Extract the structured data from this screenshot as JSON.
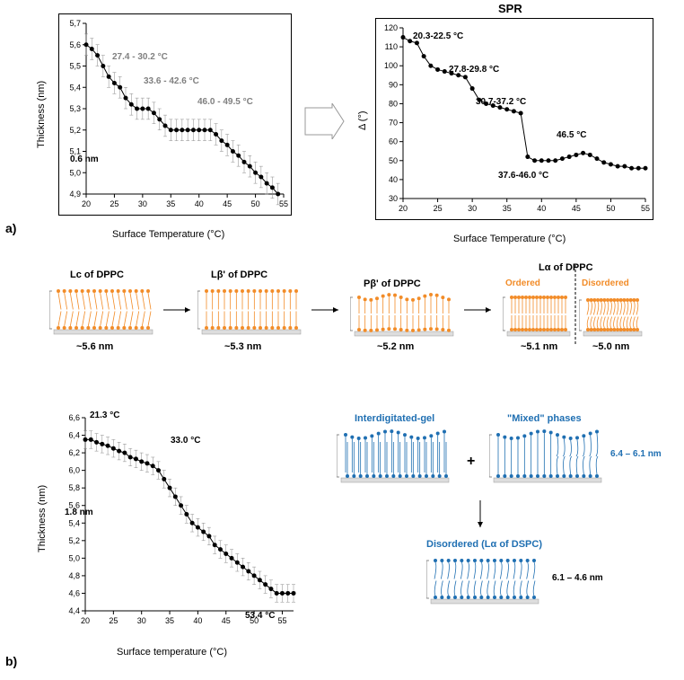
{
  "panel_a": {
    "label": "a)",
    "chart1": {
      "type": "scatter-line",
      "xlabel": "Surface Temperature (°C)",
      "ylabel": "Thickness (nm)",
      "xlim": [
        20,
        55
      ],
      "xtick_step": 5,
      "ylim": [
        4.9,
        5.7
      ],
      "ytick_step": 0.1,
      "ytick_format": "comma",
      "points": [
        {
          "x": 20,
          "y": 5.6
        },
        {
          "x": 21,
          "y": 5.58
        },
        {
          "x": 22,
          "y": 5.55
        },
        {
          "x": 23,
          "y": 5.5
        },
        {
          "x": 24,
          "y": 5.45
        },
        {
          "x": 25,
          "y": 5.42
        },
        {
          "x": 26,
          "y": 5.4
        },
        {
          "x": 27,
          "y": 5.35
        },
        {
          "x": 28,
          "y": 5.32
        },
        {
          "x": 29,
          "y": 5.3
        },
        {
          "x": 30,
          "y": 5.3
        },
        {
          "x": 31,
          "y": 5.3
        },
        {
          "x": 32,
          "y": 5.28
        },
        {
          "x": 33,
          "y": 5.25
        },
        {
          "x": 34,
          "y": 5.22
        },
        {
          "x": 35,
          "y": 5.2
        },
        {
          "x": 36,
          "y": 5.2
        },
        {
          "x": 37,
          "y": 5.2
        },
        {
          "x": 38,
          "y": 5.2
        },
        {
          "x": 39,
          "y": 5.2
        },
        {
          "x": 40,
          "y": 5.2
        },
        {
          "x": 41,
          "y": 5.2
        },
        {
          "x": 42,
          "y": 5.2
        },
        {
          "x": 43,
          "y": 5.18
        },
        {
          "x": 44,
          "y": 5.15
        },
        {
          "x": 45,
          "y": 5.13
        },
        {
          "x": 46,
          "y": 5.1
        },
        {
          "x": 47,
          "y": 5.08
        },
        {
          "x": 48,
          "y": 5.05
        },
        {
          "x": 49,
          "y": 5.03
        },
        {
          "x": 50,
          "y": 5.0
        },
        {
          "x": 51,
          "y": 4.98
        },
        {
          "x": 52,
          "y": 4.95
        },
        {
          "x": 53,
          "y": 4.93
        },
        {
          "x": 54,
          "y": 4.9
        }
      ],
      "marker_color": "#000000",
      "error_bar": 0.05,
      "annotations": [
        {
          "text": "27.4 - 30.2 °C",
          "color": "#808080"
        },
        {
          "text": "33.6 - 42.6 °C",
          "color": "#808080"
        },
        {
          "text": "46.0 - 49.5 °C",
          "color": "#808080"
        },
        {
          "text": "0.6 nm",
          "color": "#000000"
        }
      ]
    },
    "chart2": {
      "type": "scatter-line",
      "title": "SPR",
      "xlabel": "Surface Temperature (°C)",
      "ylabel": "Δ (°)",
      "xlim": [
        20,
        55
      ],
      "xtick_step": 5,
      "ylim": [
        30,
        120
      ],
      "ytick_step": 10,
      "points": [
        {
          "x": 20,
          "y": 115
        },
        {
          "x": 21,
          "y": 113
        },
        {
          "x": 22,
          "y": 112
        },
        {
          "x": 23,
          "y": 105
        },
        {
          "x": 24,
          "y": 100
        },
        {
          "x": 25,
          "y": 98
        },
        {
          "x": 26,
          "y": 97
        },
        {
          "x": 27,
          "y": 96
        },
        {
          "x": 28,
          "y": 95
        },
        {
          "x": 29,
          "y": 94
        },
        {
          "x": 30,
          "y": 88
        },
        {
          "x": 31,
          "y": 82
        },
        {
          "x": 32,
          "y": 80
        },
        {
          "x": 33,
          "y": 79
        },
        {
          "x": 34,
          "y": 78
        },
        {
          "x": 35,
          "y": 77
        },
        {
          "x": 36,
          "y": 76
        },
        {
          "x": 37,
          "y": 75
        },
        {
          "x": 38,
          "y": 52
        },
        {
          "x": 39,
          "y": 50
        },
        {
          "x": 40,
          "y": 50
        },
        {
          "x": 41,
          "y": 50
        },
        {
          "x": 42,
          "y": 50
        },
        {
          "x": 43,
          "y": 51
        },
        {
          "x": 44,
          "y": 52
        },
        {
          "x": 45,
          "y": 53
        },
        {
          "x": 46,
          "y": 54
        },
        {
          "x": 47,
          "y": 53
        },
        {
          "x": 48,
          "y": 51
        },
        {
          "x": 49,
          "y": 49
        },
        {
          "x": 50,
          "y": 48
        },
        {
          "x": 51,
          "y": 47
        },
        {
          "x": 52,
          "y": 47
        },
        {
          "x": 53,
          "y": 46
        },
        {
          "x": 54,
          "y": 46
        },
        {
          "x": 55,
          "y": 46
        }
      ],
      "marker_color": "#000000",
      "annotations": [
        {
          "text": "20.3-22.5 °C"
        },
        {
          "text": "27.8-29.8 °C"
        },
        {
          "text": "30.7-37.2 °C"
        },
        {
          "text": "46.5 °C"
        },
        {
          "text": "37.6-46.0 °C"
        }
      ]
    },
    "schematics": {
      "color": "#f28c28",
      "phases": [
        {
          "label": "Lc of DPPC",
          "thickness": "~5.6 nm",
          "type": "tilted"
        },
        {
          "label": "Lβ' of DPPC",
          "thickness": "~5.3 nm",
          "type": "straight"
        },
        {
          "label": "Pβ' of DPPC",
          "thickness": "~5.2 nm",
          "type": "ripple"
        },
        {
          "label": "Lα of DPPC",
          "thickness_ordered": "~5.1 nm",
          "thickness_disordered": "~5.0 nm",
          "ordered_label": "Ordered",
          "disordered_label": "Disordered"
        }
      ]
    }
  },
  "panel_b": {
    "label": "b)",
    "chart": {
      "type": "scatter-line",
      "xlabel": "Surface temperature (°C)",
      "ylabel": "Thickness (nm)",
      "xlim": [
        20,
        57
      ],
      "xtick_step": 5,
      "ylim": [
        4.4,
        6.6
      ],
      "ytick_step": 0.2,
      "ytick_format": "comma",
      "points": [
        {
          "x": 20,
          "y": 6.35
        },
        {
          "x": 21,
          "y": 6.35
        },
        {
          "x": 22,
          "y": 6.32
        },
        {
          "x": 23,
          "y": 6.3
        },
        {
          "x": 24,
          "y": 6.28
        },
        {
          "x": 25,
          "y": 6.25
        },
        {
          "x": 26,
          "y": 6.22
        },
        {
          "x": 27,
          "y": 6.2
        },
        {
          "x": 28,
          "y": 6.15
        },
        {
          "x": 29,
          "y": 6.13
        },
        {
          "x": 30,
          "y": 6.1
        },
        {
          "x": 31,
          "y": 6.08
        },
        {
          "x": 32,
          "y": 6.05
        },
        {
          "x": 33,
          "y": 6.0
        },
        {
          "x": 34,
          "y": 5.9
        },
        {
          "x": 35,
          "y": 5.8
        },
        {
          "x": 36,
          "y": 5.7
        },
        {
          "x": 37,
          "y": 5.6
        },
        {
          "x": 38,
          "y": 5.5
        },
        {
          "x": 39,
          "y": 5.4
        },
        {
          "x": 40,
          "y": 5.35
        },
        {
          "x": 41,
          "y": 5.3
        },
        {
          "x": 42,
          "y": 5.25
        },
        {
          "x": 43,
          "y": 5.15
        },
        {
          "x": 44,
          "y": 5.1
        },
        {
          "x": 45,
          "y": 5.05
        },
        {
          "x": 46,
          "y": 5.0
        },
        {
          "x": 47,
          "y": 4.95
        },
        {
          "x": 48,
          "y": 4.9
        },
        {
          "x": 49,
          "y": 4.85
        },
        {
          "x": 50,
          "y": 4.8
        },
        {
          "x": 51,
          "y": 4.75
        },
        {
          "x": 52,
          "y": 4.7
        },
        {
          "x": 53,
          "y": 4.65
        },
        {
          "x": 54,
          "y": 4.6
        },
        {
          "x": 55,
          "y": 4.6
        },
        {
          "x": 56,
          "y": 4.6
        },
        {
          "x": 57,
          "y": 4.6
        }
      ],
      "marker_color": "#000000",
      "error_bar": 0.1,
      "annotations": [
        {
          "text": "21.3 °C"
        },
        {
          "text": "33.0 °C"
        },
        {
          "text": "53.4 °C"
        },
        {
          "text": "1.8 nm"
        }
      ]
    },
    "schematics": {
      "color": "#1f6fb2",
      "interdigitated": {
        "label": "Interdigitated-gel"
      },
      "mixed": {
        "label": "\"Mixed\" phases",
        "range": "6.4 – 6.1 nm"
      },
      "disordered": {
        "label": "Disordered (Lα of DSPC)",
        "range": "6.1 – 4.6 nm"
      }
    }
  }
}
